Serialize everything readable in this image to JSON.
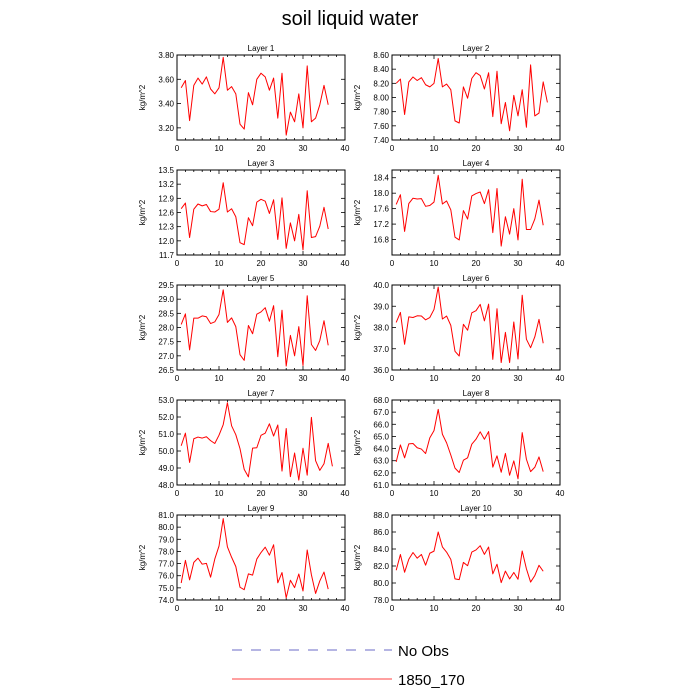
{
  "title": "soil liquid water",
  "chart_data": [
    {
      "type": "line",
      "title": "Layer 1",
      "ylabel": "kg/m^2",
      "xlim": [
        0,
        40
      ],
      "ylim": [
        3.1,
        3.8
      ],
      "xticks": [
        0,
        10,
        20,
        30,
        40
      ],
      "yticks": [
        "3.20",
        "3.40",
        "3.60",
        "3.80"
      ],
      "series": [
        {
          "values": [
            3.53,
            3.59,
            3.26,
            3.55,
            3.61,
            3.56,
            3.62,
            3.52,
            3.48,
            3.53,
            3.78,
            3.51,
            3.54,
            3.48,
            3.23,
            3.19,
            3.49,
            3.39,
            3.6,
            3.65,
            3.62,
            3.51,
            3.61,
            3.28,
            3.65,
            3.14,
            3.33,
            3.25,
            3.48,
            3.2,
            3.71,
            3.25,
            3.28,
            3.39,
            3.55,
            3.39
          ]
        }
      ]
    },
    {
      "type": "line",
      "title": "Layer 2",
      "ylabel": "kg/m^2",
      "xlim": [
        0,
        40
      ],
      "ylim": [
        7.4,
        8.6
      ],
      "xticks": [
        0,
        10,
        20,
        30,
        40
      ],
      "yticks": [
        "7.40",
        "7.60",
        "7.80",
        "8.00",
        "8.20",
        "8.40",
        "8.60"
      ],
      "series": [
        {
          "values": [
            8.2,
            8.26,
            7.76,
            8.22,
            8.29,
            8.24,
            8.28,
            8.18,
            8.15,
            8.2,
            8.55,
            8.15,
            8.19,
            8.11,
            7.67,
            7.64,
            8.15,
            7.99,
            8.27,
            8.35,
            8.31,
            8.12,
            8.35,
            7.73,
            8.37,
            7.63,
            7.93,
            7.53,
            8.03,
            7.74,
            8.11,
            7.58,
            8.46,
            7.74,
            7.78,
            8.22,
            7.93
          ]
        }
      ]
    },
    {
      "type": "line",
      "title": "Layer 3",
      "ylabel": "kg/m^2",
      "xlim": [
        0,
        40
      ],
      "ylim": [
        11.7,
        13.5
      ],
      "xticks": [
        0,
        10,
        20,
        30,
        40
      ],
      "yticks": [
        "11.7",
        "12.0",
        "12.3",
        "12.6",
        "12.9",
        "13.2",
        "13.5"
      ],
      "series": [
        {
          "values": [
            12.68,
            12.8,
            12.07,
            12.67,
            12.78,
            12.74,
            12.77,
            12.62,
            12.61,
            12.67,
            13.23,
            12.61,
            12.68,
            12.51,
            11.96,
            11.92,
            12.49,
            12.32,
            12.82,
            12.88,
            12.84,
            12.58,
            12.87,
            12.03,
            12.91,
            11.84,
            12.38,
            12.0,
            12.56,
            11.81,
            13.06,
            12.07,
            12.09,
            12.31,
            12.71,
            12.25
          ]
        }
      ]
    },
    {
      "type": "line",
      "title": "Layer 4",
      "ylabel": "kg/m^2",
      "xlim": [
        0,
        40
      ],
      "ylim": [
        16.4,
        18.6
      ],
      "xticks": [
        0,
        10,
        20,
        30,
        40
      ],
      "yticks": [
        "16.8",
        "17.2",
        "17.6",
        "18.0",
        "18.4"
      ],
      "series": [
        {
          "values": [
            17.71,
            17.96,
            17.01,
            17.73,
            17.87,
            17.85,
            17.86,
            17.66,
            17.68,
            17.77,
            18.46,
            17.72,
            17.8,
            17.57,
            16.86,
            16.79,
            17.55,
            17.33,
            17.93,
            17.99,
            18.03,
            17.73,
            18.09,
            16.98,
            18.12,
            16.63,
            17.39,
            16.94,
            17.6,
            16.79,
            18.36,
            17.06,
            17.06,
            17.33,
            17.82,
            17.17
          ]
        }
      ]
    },
    {
      "type": "line",
      "title": "Layer 5",
      "ylabel": "kg/m^2",
      "xlim": [
        0,
        40
      ],
      "ylim": [
        26.5,
        29.5
      ],
      "xticks": [
        0,
        10,
        20,
        30,
        40
      ],
      "yticks": [
        "26.5",
        "27.0",
        "27.5",
        "28.0",
        "28.5",
        "29.0",
        "29.5"
      ],
      "series": [
        {
          "values": [
            28.11,
            28.48,
            27.21,
            28.33,
            28.33,
            28.41,
            28.38,
            28.14,
            28.2,
            28.46,
            29.33,
            28.18,
            28.34,
            28.03,
            27.04,
            26.84,
            28.07,
            27.78,
            28.47,
            28.55,
            28.7,
            28.22,
            28.77,
            26.97,
            28.61,
            26.64,
            27.72,
            27.0,
            28.03,
            26.66,
            29.12,
            27.4,
            27.19,
            27.54,
            28.24,
            27.37
          ]
        }
      ]
    },
    {
      "type": "line",
      "title": "Layer 6",
      "ylabel": "kg/m^2",
      "xlim": [
        0,
        40
      ],
      "ylim": [
        36.0,
        40.0
      ],
      "xticks": [
        0,
        10,
        20,
        30,
        40
      ],
      "yticks": [
        "36.0",
        "37.0",
        "38.0",
        "39.0",
        "40.0"
      ],
      "series": [
        {
          "values": [
            38.24,
            38.71,
            37.21,
            38.5,
            38.47,
            38.55,
            38.54,
            38.36,
            38.47,
            38.85,
            39.9,
            38.4,
            38.54,
            38.1,
            36.88,
            36.66,
            38.15,
            37.87,
            38.69,
            38.79,
            39.09,
            38.31,
            39.1,
            36.5,
            38.88,
            36.35,
            37.77,
            36.35,
            38.26,
            36.52,
            39.52,
            37.45,
            37.05,
            37.56,
            38.38,
            37.26
          ]
        }
      ]
    },
    {
      "type": "line",
      "title": "Layer 7",
      "ylabel": "kg/m^2",
      "xlim": [
        0,
        40
      ],
      "ylim": [
        48.0,
        53.0
      ],
      "xticks": [
        0,
        10,
        20,
        30,
        40
      ],
      "yticks": [
        "48.0",
        "49.0",
        "50.0",
        "51.0",
        "52.0",
        "53.0"
      ],
      "series": [
        {
          "values": [
            50.31,
            51.05,
            49.33,
            50.72,
            50.82,
            50.76,
            50.84,
            50.61,
            50.44,
            50.93,
            51.55,
            52.84,
            51.48,
            50.96,
            50.14,
            48.92,
            48.48,
            50.17,
            50.19,
            50.92,
            51.05,
            51.6,
            50.88,
            51.53,
            48.82,
            51.32,
            48.49,
            49.88,
            48.29,
            50.16,
            48.58,
            51.98,
            49.43,
            48.86,
            49.25,
            50.45,
            49.1
          ]
        }
      ]
    },
    {
      "type": "line",
      "title": "Layer 8",
      "ylabel": "kg/m^2",
      "xlim": [
        0,
        40
      ],
      "ylim": [
        61.0,
        68.0
      ],
      "xticks": [
        0,
        10,
        20,
        30,
        40
      ],
      "yticks": [
        "61.0",
        "62.0",
        "63.0",
        "64.0",
        "65.0",
        "66.0",
        "67.0",
        "68.0"
      ],
      "series": [
        {
          "values": [
            62.9,
            64.3,
            63.24,
            64.39,
            64.42,
            64.07,
            63.96,
            63.59,
            64.88,
            65.48,
            67.23,
            65.18,
            64.47,
            63.47,
            62.39,
            62.03,
            63.04,
            63.24,
            64.36,
            64.77,
            65.38,
            64.77,
            65.4,
            62.47,
            63.4,
            62.05,
            63.6,
            61.8,
            62.99,
            61.51,
            65.31,
            63.12,
            62.1,
            62.46,
            63.31,
            62.1
          ]
        }
      ]
    },
    {
      "type": "line",
      "title": "Layer 9",
      "ylabel": "kg/m^2",
      "xlim": [
        0,
        40
      ],
      "ylim": [
        74.0,
        81.0
      ],
      "xticks": [
        0,
        10,
        20,
        30,
        40
      ],
      "yticks": [
        "74.0",
        "75.0",
        "76.0",
        "77.0",
        "78.0",
        "79.0",
        "80.0",
        "81.0"
      ],
      "series": [
        {
          "values": [
            75.4,
            77.26,
            75.66,
            77.1,
            77.45,
            76.95,
            77.02,
            75.88,
            77.38,
            78.44,
            80.7,
            78.38,
            77.52,
            76.76,
            75.05,
            74.85,
            76.15,
            76.05,
            77.37,
            77.91,
            78.35,
            77.69,
            78.55,
            75.42,
            76.26,
            74.18,
            75.63,
            75.02,
            76.14,
            74.74,
            78.12,
            76.08,
            74.54,
            75.57,
            76.3,
            74.9
          ]
        }
      ]
    },
    {
      "type": "line",
      "title": "Layer 10",
      "ylabel": "kg/m^2",
      "xlim": [
        0,
        40
      ],
      "ylim": [
        78.0,
        88.0
      ],
      "xticks": [
        0,
        10,
        20,
        30,
        40
      ],
      "yticks": [
        "78.0",
        "80.0",
        "82.0",
        "84.0",
        "86.0",
        "88.0"
      ],
      "series": [
        {
          "values": [
            81.5,
            83.35,
            81.27,
            82.79,
            83.59,
            82.92,
            83.36,
            82.1,
            83.5,
            83.75,
            86.0,
            84.25,
            83.63,
            82.78,
            80.49,
            80.4,
            82.42,
            82.03,
            83.64,
            83.89,
            84.39,
            83.37,
            84.23,
            81.08,
            82.21,
            80.05,
            81.4,
            80.48,
            81.24,
            80.44,
            83.77,
            81.68,
            80.11,
            80.87,
            82.08,
            81.38
          ]
        }
      ]
    }
  ],
  "legend": {
    "items": [
      {
        "label": "No Obs",
        "color": "#3b3bb5",
        "dash": true
      },
      {
        "label": "1850_170",
        "color": "#ff0000",
        "dash": false
      }
    ]
  },
  "colors": {
    "series": "#ff0000",
    "axis": "#000000"
  }
}
